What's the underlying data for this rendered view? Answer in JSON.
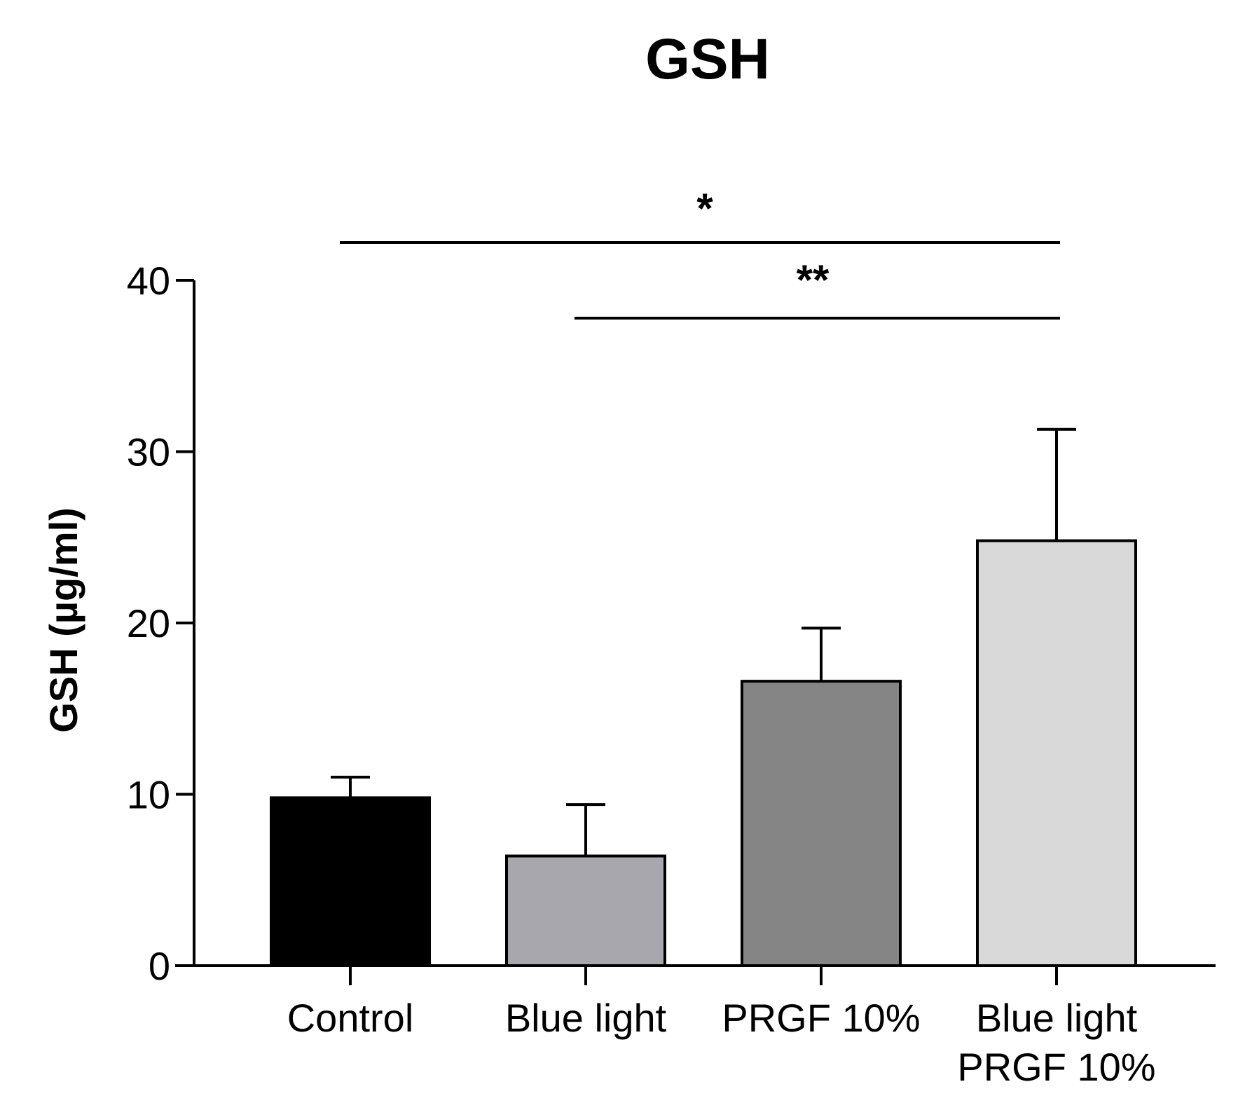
{
  "chart_data": {
    "type": "bar",
    "title": "GSH",
    "xlabel": "",
    "ylabel": "GSH (µg/ml)",
    "ylim": [
      0,
      40
    ],
    "yticks": [
      0,
      10,
      20,
      30,
      40
    ],
    "grid": false,
    "categories": [
      [
        "Control"
      ],
      [
        "Blue light"
      ],
      [
        "PRGF 10%"
      ],
      [
        "Blue light",
        "PRGF 10%"
      ]
    ],
    "values": [
      9.8,
      6.4,
      16.6,
      24.8
    ],
    "errors": [
      1.2,
      3.0,
      3.1,
      6.5
    ],
    "colors": [
      "#000000",
      "#a8a7ad",
      "#858585",
      "#d9d9d9"
    ],
    "significance": [
      {
        "from": 0,
        "to": 3,
        "label": "*"
      },
      {
        "from": 1,
        "to": 3,
        "label": "**"
      }
    ]
  }
}
